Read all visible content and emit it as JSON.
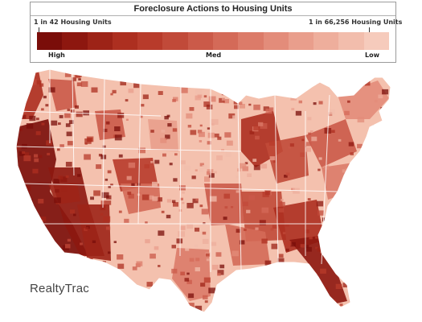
{
  "legend": {
    "title": "Foreclosure Actions to Housing Units",
    "min_label": "1 in 42 Housing Units",
    "max_label": "1 in 66,256 Housing Units",
    "high": "High",
    "med": "Med",
    "low": "Low",
    "colors": [
      "#7a0d09",
      "#8d170f",
      "#9d2317",
      "#ad2f20",
      "#b83b2b",
      "#c14a39",
      "#cb5a49",
      "#d46a58",
      "#dc7b69",
      "#e38c7a",
      "#e99e8c",
      "#eeae9c",
      "#f2bdac",
      "#f6cbbc"
    ]
  },
  "map_colors": {
    "background": "#ffffff",
    "land_light": "#f4c1ae",
    "state_border": "#ffffff"
  },
  "brand": {
    "logo": "RealtyTrac"
  }
}
